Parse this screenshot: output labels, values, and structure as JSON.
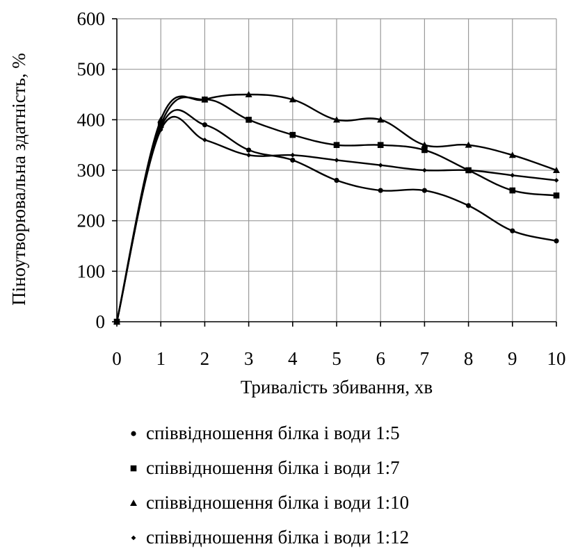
{
  "chart_data": {
    "type": "scatter",
    "title": "",
    "xlabel": "Тривалість збивання, хв",
    "ylabel": "Піноутворювальна здатність, %",
    "xlim": [
      0,
      10
    ],
    "ylim": [
      0,
      600
    ],
    "x_ticks": [
      "0",
      "1",
      "2",
      "3",
      "4",
      "5",
      "6",
      "7",
      "8",
      "9",
      "10"
    ],
    "y_ticks": [
      "0",
      "100",
      "200",
      "300",
      "400",
      "500",
      "600"
    ],
    "grid": true,
    "legend_position": "bottom",
    "trendline": "polynomial",
    "x": [
      0,
      1,
      2,
      3,
      4,
      5,
      6,
      7,
      8,
      9,
      10
    ],
    "series": [
      {
        "name": "співвідношення білка і води 1:5",
        "marker": "circle",
        "values": [
          0,
          385,
          390,
          340,
          320,
          280,
          260,
          260,
          230,
          180,
          160
        ]
      },
      {
        "name": "співвідношення білка і води 1:7",
        "marker": "square",
        "values": [
          0,
          390,
          440,
          400,
          370,
          350,
          350,
          340,
          300,
          260,
          250
        ]
      },
      {
        "name": "співвідношення білка і води 1:10",
        "marker": "triangle",
        "values": [
          0,
          400,
          440,
          450,
          440,
          400,
          400,
          350,
          350,
          330,
          300
        ]
      },
      {
        "name": "співвідношення білка і води 1:12",
        "marker": "diamond",
        "values": [
          0,
          380,
          360,
          330,
          330,
          320,
          310,
          300,
          300,
          290,
          280
        ]
      }
    ]
  }
}
